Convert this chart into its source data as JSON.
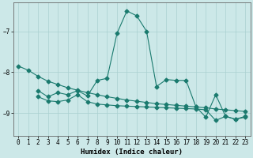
{
  "xlabel": "Humidex (Indice chaleur)",
  "bg_color": "#cce8e8",
  "grid_color": "#aad0d0",
  "line_color": "#1a7a6e",
  "xlim": [
    -0.5,
    23.5
  ],
  "ylim": [
    -9.55,
    -6.3
  ],
  "yticks": [
    -9,
    -8,
    -7
  ],
  "xticks": [
    0,
    1,
    2,
    3,
    4,
    5,
    6,
    7,
    8,
    9,
    10,
    11,
    12,
    13,
    14,
    15,
    16,
    17,
    18,
    19,
    20,
    21,
    22,
    23
  ],
  "line1_x": [
    0,
    1,
    2,
    3,
    4,
    5,
    6,
    7,
    8,
    9,
    10,
    11,
    12,
    13,
    14,
    15,
    16,
    17,
    18,
    19,
    20,
    21,
    22,
    23
  ],
  "line1_y": [
    -7.85,
    -7.95,
    -8.1,
    -8.22,
    -8.3,
    -8.38,
    -8.44,
    -8.5,
    -8.55,
    -8.6,
    -8.64,
    -8.68,
    -8.71,
    -8.74,
    -8.77,
    -8.79,
    -8.81,
    -8.83,
    -8.85,
    -8.87,
    -8.9,
    -8.92,
    -8.94,
    -8.96
  ],
  "line2_x": [
    2,
    3,
    4,
    5,
    6,
    7,
    8,
    9,
    10,
    11,
    12,
    13,
    14,
    15,
    16,
    17,
    18,
    19,
    20,
    21,
    22,
    23
  ],
  "line2_y": [
    -8.45,
    -8.6,
    -8.5,
    -8.55,
    -8.45,
    -8.58,
    -8.2,
    -8.15,
    -7.05,
    -6.5,
    -6.62,
    -7.0,
    -8.35,
    -8.18,
    -8.2,
    -8.2,
    -8.85,
    -9.1,
    -8.55,
    -9.08,
    -9.15,
    -9.1
  ],
  "line3_x": [
    2,
    3,
    4,
    5,
    6,
    7,
    8,
    9,
    10,
    11,
    12,
    13,
    14,
    15,
    16,
    17,
    18,
    19,
    20,
    21,
    22,
    23
  ],
  "line3_y": [
    -8.6,
    -8.7,
    -8.72,
    -8.68,
    -8.55,
    -8.72,
    -8.78,
    -8.8,
    -8.82,
    -8.83,
    -8.84,
    -8.85,
    -8.86,
    -8.87,
    -8.88,
    -8.89,
    -8.9,
    -8.92,
    -9.18,
    -9.08,
    -9.15,
    -9.08
  ]
}
